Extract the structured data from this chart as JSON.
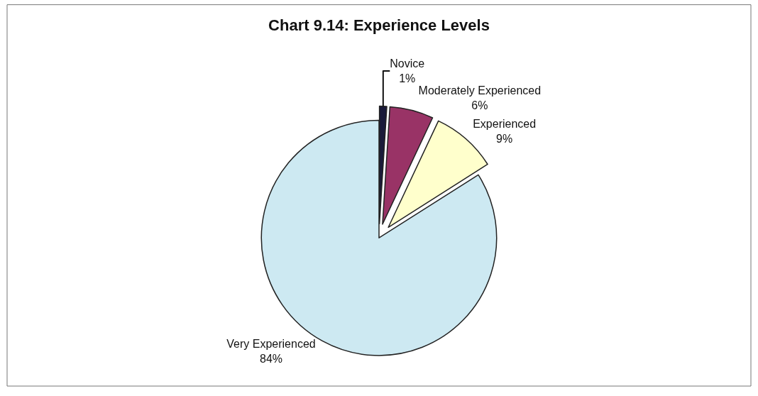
{
  "chart_data": {
    "type": "pie",
    "title": "Chart 9.14: Experience Levels",
    "categories": [
      "Novice",
      "Moderately Experienced",
      "Experienced",
      "Very Experienced"
    ],
    "values": [
      1,
      6,
      9,
      84
    ],
    "value_labels": [
      "1%",
      "6%",
      "9%",
      "84%"
    ],
    "colors": [
      "#1a1a3a",
      "#993366",
      "#ffffcc",
      "#cde9f2"
    ],
    "legend": false
  }
}
